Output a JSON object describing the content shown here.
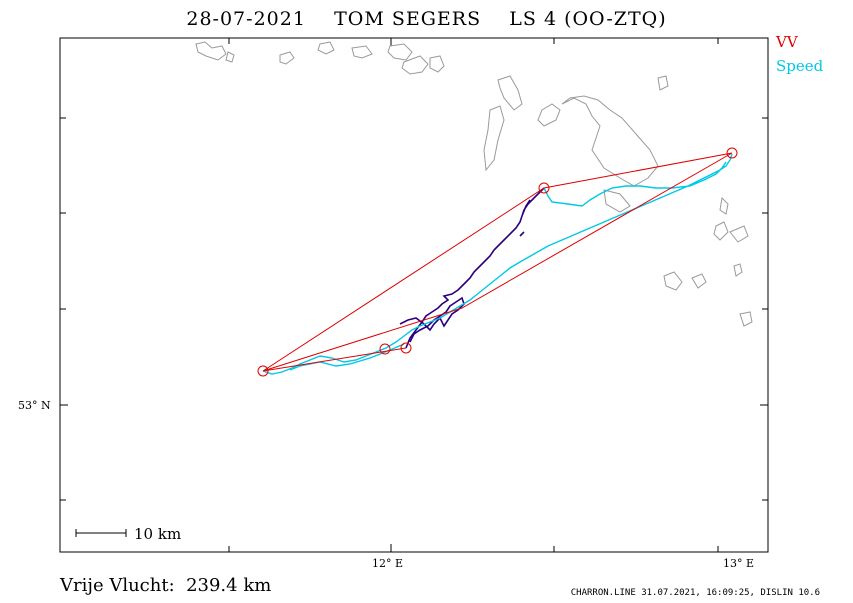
{
  "title": {
    "date": "28-07-2021",
    "pilot": "TOM SEGERS",
    "glider": "LS 4 (OO-ZTQ)"
  },
  "legend": {
    "vv": "VV",
    "speed": "Speed",
    "vv_color": "#e00000",
    "speed_color": "#00c8e6",
    "track_color": "#2a0080"
  },
  "axes": {
    "lat_label": "53° N",
    "lon_labels": [
      "12° E",
      "13° E"
    ]
  },
  "scale": {
    "label": "10 km"
  },
  "distance": "Vrije Vlucht:  239.4 km",
  "footer": "CHARRON.LINE 31.07.2021, 16:09:25, DISLIN 10.6",
  "map": {
    "turnpoints": 5
  }
}
